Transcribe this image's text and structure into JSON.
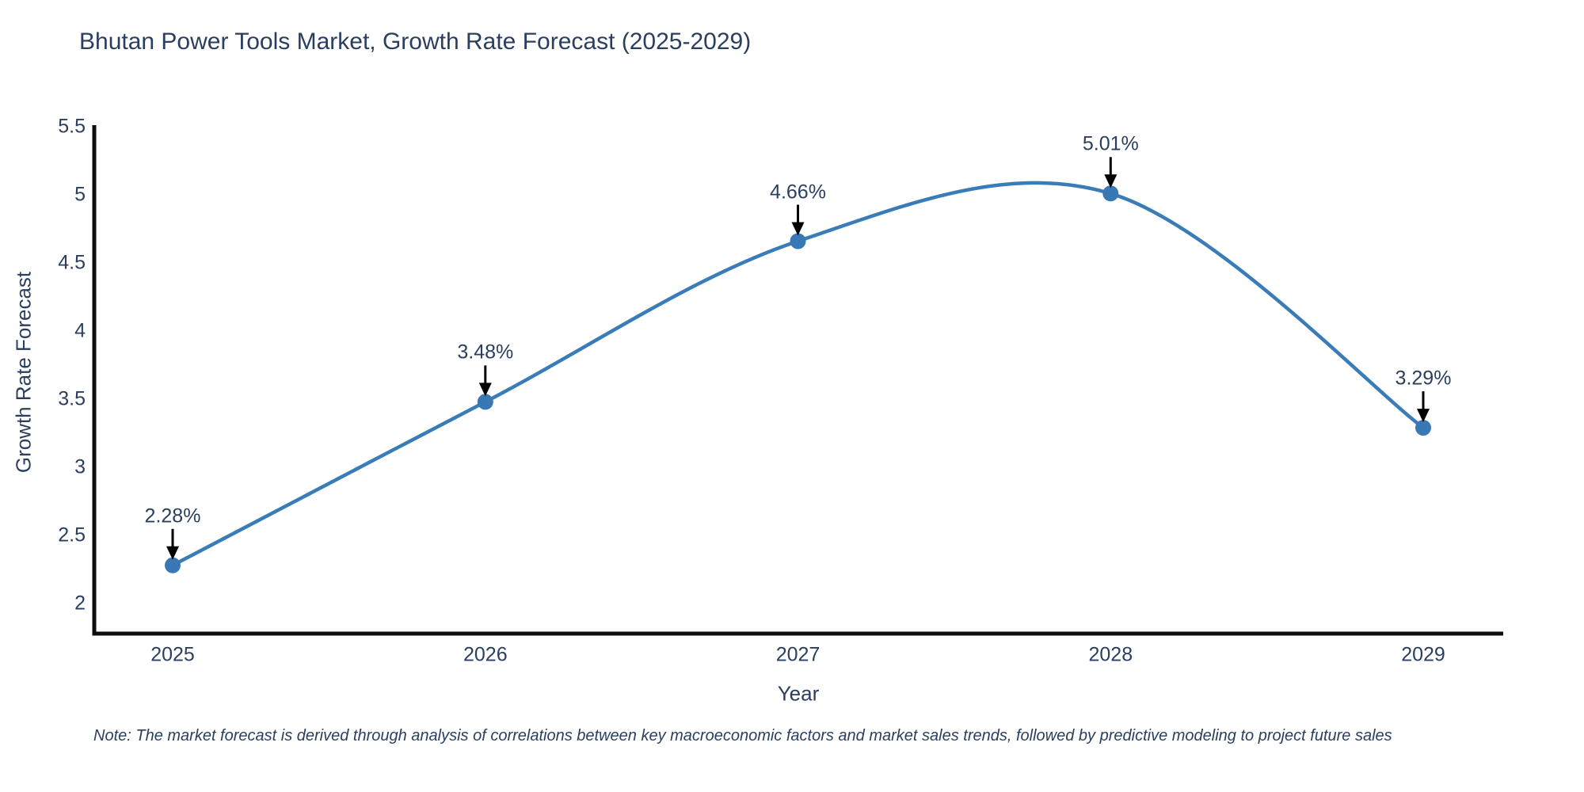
{
  "chart_data": {
    "type": "line",
    "line_shape": "spline",
    "title": "Bhutan Power Tools Market, Growth Rate Forecast (2025-2029)",
    "xlabel": "Year",
    "ylabel": "Growth Rate Forecast",
    "categories": [
      "2025",
      "2026",
      "2027",
      "2028",
      "2029"
    ],
    "values": [
      2.28,
      3.48,
      4.66,
      5.01,
      3.29
    ],
    "point_labels": [
      "2.28%",
      "3.48%",
      "4.66%",
      "5.01%",
      "3.29%"
    ],
    "ytick_values": [
      2,
      2.5,
      3,
      3.5,
      4,
      4.5,
      5,
      5.5
    ],
    "ylim": [
      1.78,
      5.5
    ],
    "grid": false,
    "legend": "none",
    "colors": {
      "line": "#3a7cb8",
      "marker": "#3878b5",
      "axis": "#0d0d0d",
      "text": "#2a3f5f",
      "arrow": "#000000",
      "background": "#ffffff"
    }
  },
  "footnote": "Note: The market forecast is derived through analysis of correlations between key macroeconomic factors and market sales trends, followed by predictive modeling to project future sales"
}
